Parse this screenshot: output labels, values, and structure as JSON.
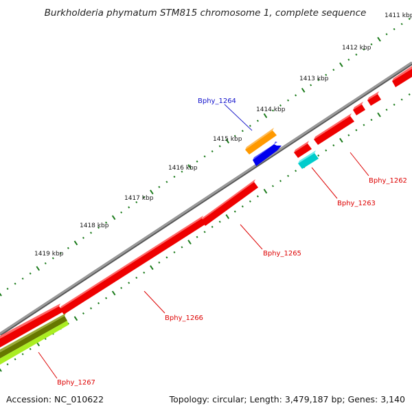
{
  "title": "Burkholderia phymatum STM815 chromosome 1, complete sequence",
  "accession": "Accession: NC_010622",
  "topology": "Topology: circular; Length: 3,479,187 bp; Genes: 3,140",
  "colors": {
    "backbone": "#808080",
    "forward_gene": "#ff0000",
    "reverse_gene": "#ff0000",
    "tick": "#1a7a1a",
    "label_red": "#dd0000",
    "label_blue": "#1010cc",
    "orange_gene": "#ff9900",
    "blue_gene": "#0000ee",
    "cyan_gene": "#00cccc",
    "olive_gene": "#667700",
    "lime_gene": "#aaee22"
  },
  "kbp_labels": [
    "1411 kbp",
    "1412 kbp",
    "1413 kbp",
    "1414 kbp",
    "1415 kbp",
    "1416 kbp",
    "1417 kbp",
    "1418 kbp",
    "1419 kbp"
  ],
  "gene_labels": {
    "bphy_1262": "Bphy_1262",
    "bphy_1263": "Bphy_1263",
    "bphy_1264": "Bphy_1264",
    "bphy_1265": "Bphy_1265",
    "bphy_1266": "Bphy_1266",
    "bphy_1267": "Bphy_1267"
  }
}
